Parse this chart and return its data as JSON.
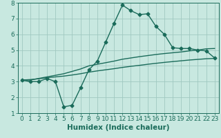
{
  "x": [
    0,
    1,
    2,
    3,
    4,
    5,
    6,
    7,
    8,
    9,
    10,
    11,
    12,
    13,
    14,
    15,
    16,
    17,
    18,
    19,
    20,
    21,
    22,
    23
  ],
  "line1": [
    3.1,
    3.0,
    3.0,
    3.2,
    3.0,
    1.4,
    1.5,
    2.6,
    3.75,
    4.3,
    5.5,
    6.7,
    7.85,
    7.5,
    7.25,
    7.3,
    6.5,
    6.0,
    5.15,
    5.1,
    5.1,
    5.0,
    4.95,
    4.5
  ],
  "line2": [
    3.1,
    3.1,
    3.2,
    3.3,
    3.4,
    3.5,
    3.65,
    3.8,
    4.0,
    4.1,
    4.2,
    4.3,
    4.42,
    4.5,
    4.58,
    4.65,
    4.72,
    4.78,
    4.83,
    4.88,
    4.95,
    5.0,
    5.08,
    5.1
  ],
  "line3": [
    3.1,
    3.13,
    3.18,
    3.25,
    3.3,
    3.35,
    3.42,
    3.5,
    3.6,
    3.68,
    3.75,
    3.82,
    3.9,
    3.97,
    4.03,
    4.1,
    4.16,
    4.22,
    4.27,
    4.32,
    4.37,
    4.41,
    4.45,
    4.47
  ],
  "bg_color": "#c8e8e0",
  "grid_color": "#a0c8c0",
  "line_color": "#1a6b5a",
  "xlim_min": -0.5,
  "xlim_max": 23.5,
  "ylim_min": 1,
  "ylim_max": 8,
  "yticks": [
    1,
    2,
    3,
    4,
    5,
    6,
    7,
    8
  ],
  "xticks": [
    0,
    1,
    2,
    3,
    4,
    5,
    6,
    7,
    8,
    9,
    10,
    11,
    12,
    13,
    14,
    15,
    16,
    17,
    18,
    19,
    20,
    21,
    22,
    23
  ],
  "xlabel": "Humidex (Indice chaleur)",
  "xlabel_fontsize": 7.5,
  "tick_fontsize": 6.5,
  "line_width": 1.0,
  "marker_size": 2.5
}
